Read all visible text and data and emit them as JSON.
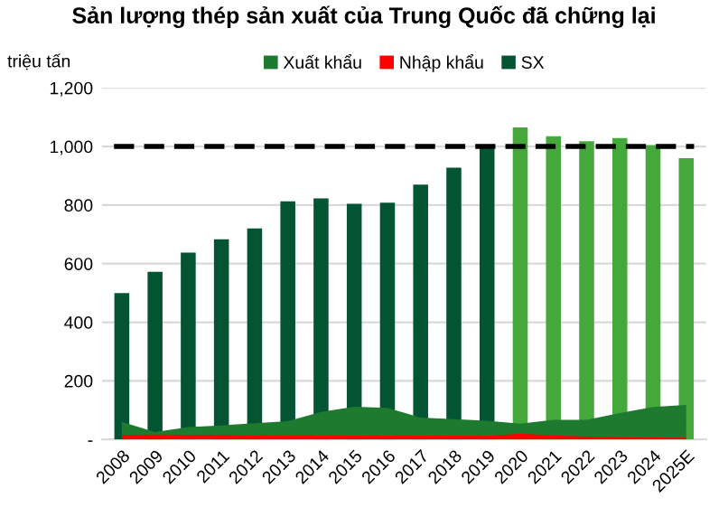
{
  "chart_data": {
    "type": "bar",
    "title": "Sản lượng thép sản xuất của Trung Quốc đã chững lại",
    "ylabel": "triệu tấn",
    "categories": [
      "2008",
      "2009",
      "2010",
      "2011",
      "2012",
      "2013",
      "2014",
      "2015",
      "2016",
      "2017",
      "2018",
      "2019",
      "2020",
      "2021",
      "2022",
      "2023",
      "2024",
      "2025E"
    ],
    "series": [
      {
        "name": "Xuất khẩu",
        "type": "area",
        "color": "#1e7a2e",
        "values": [
          60,
          25,
          42,
          48,
          55,
          62,
          94,
          112,
          108,
          75,
          69,
          64,
          54,
          67,
          67,
          90,
          111,
          118
        ]
      },
      {
        "name": "Nhập khẩu",
        "type": "area",
        "color": "#ff0000",
        "values": [
          15,
          17,
          16,
          16,
          14,
          14,
          14,
          13,
          13,
          13,
          13,
          12,
          20,
          14,
          10,
          8,
          7,
          6
        ]
      },
      {
        "name": "SX",
        "color": "#035433",
        "colors": [
          "#035433",
          "#035433",
          "#035433",
          "#035433",
          "#035433",
          "#035433",
          "#035433",
          "#035433",
          "#035433",
          "#035433",
          "#035433",
          "#035433",
          "#44a83a",
          "#44a83a",
          "#44a83a",
          "#44a83a",
          "#44a83a",
          "#44a83a"
        ],
        "values": [
          500,
          572,
          638,
          683,
          720,
          813,
          823,
          804,
          808,
          870,
          928,
          996,
          1065,
          1035,
          1018,
          1029,
          1005,
          960
        ]
      }
    ],
    "ylim": [
      0,
      1200
    ],
    "yticks": [
      {
        "value": 0,
        "label": "-"
      },
      {
        "value": 200,
        "label": "200"
      },
      {
        "value": 400,
        "label": "400"
      },
      {
        "value": 600,
        "label": "600"
      },
      {
        "value": 800,
        "label": "800"
      },
      {
        "value": 1000,
        "label": "1,000"
      },
      {
        "value": 1200,
        "label": "1,200"
      }
    ],
    "ref_lines": [
      {
        "axis": "y",
        "value": 1000,
        "color": "#000000",
        "line_style": "dashed"
      }
    ],
    "grid": "y",
    "legend": "top"
  }
}
